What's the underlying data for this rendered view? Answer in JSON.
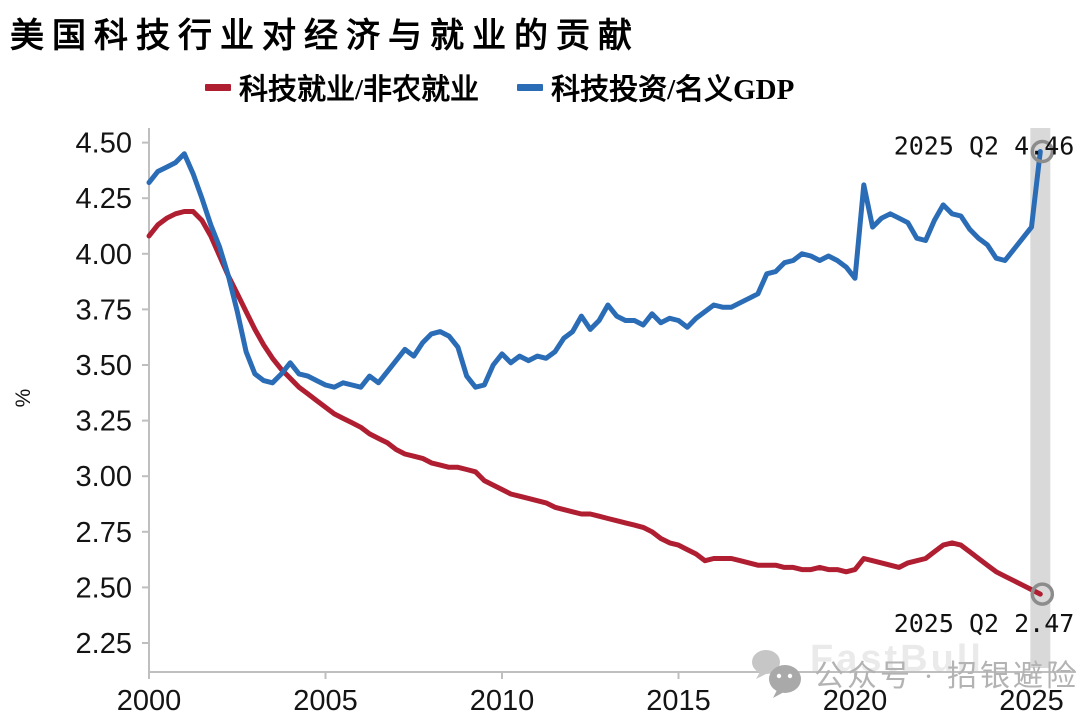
{
  "title": "美国科技行业对经济与就业的贡献",
  "legend": {
    "items": [
      {
        "label": "科技就业/非农就业",
        "color": "#b01e32"
      },
      {
        "label": "科技投资/名义GDP",
        "color": "#2a6cb5"
      }
    ]
  },
  "watermark": {
    "icon": "wechat-icon",
    "text": "公众号 · 招银避险",
    "faint_text": "FastBull"
  },
  "chart_data": {
    "type": "line",
    "title": "美国科技行业对经济与就业的贡献",
    "xlabel": "",
    "ylabel": "%",
    "ylim": [
      2.25,
      4.5
    ],
    "grid": false,
    "yticks": [
      "4.50",
      "4.25",
      "4.00",
      "3.75",
      "3.50",
      "3.25",
      "3.00",
      "2.75",
      "2.50",
      "2.25"
    ],
    "xticks": [
      "2000",
      "2005",
      "2010",
      "2015",
      "2020",
      "2025"
    ],
    "x_start": 2000,
    "x_step": 0.25,
    "x_end_period": "2025 Q2",
    "axis_color": "#bfbfbf",
    "highlight_band": {
      "period": "2025 Q2",
      "color": "#d9d9d9"
    },
    "end_marker_color": "#8c8c8c",
    "series": [
      {
        "name": "科技就业/非农就业",
        "color": "#b01e32",
        "values": [
          4.08,
          4.13,
          4.16,
          4.18,
          4.19,
          4.19,
          4.15,
          4.08,
          3.99,
          3.9,
          3.82,
          3.74,
          3.66,
          3.59,
          3.53,
          3.48,
          3.44,
          3.4,
          3.37,
          3.34,
          3.31,
          3.28,
          3.26,
          3.24,
          3.22,
          3.19,
          3.17,
          3.15,
          3.12,
          3.1,
          3.09,
          3.08,
          3.06,
          3.05,
          3.04,
          3.04,
          3.03,
          3.02,
          2.98,
          2.96,
          2.94,
          2.92,
          2.91,
          2.9,
          2.89,
          2.88,
          2.86,
          2.85,
          2.84,
          2.83,
          2.83,
          2.82,
          2.81,
          2.8,
          2.79,
          2.78,
          2.77,
          2.75,
          2.72,
          2.7,
          2.69,
          2.67,
          2.65,
          2.62,
          2.63,
          2.63,
          2.63,
          2.62,
          2.61,
          2.6,
          2.6,
          2.6,
          2.59,
          2.59,
          2.58,
          2.58,
          2.59,
          2.58,
          2.58,
          2.57,
          2.58,
          2.63,
          2.62,
          2.61,
          2.6,
          2.59,
          2.61,
          2.62,
          2.63,
          2.66,
          2.69,
          2.7,
          2.69,
          2.66,
          2.63,
          2.6,
          2.57,
          2.55,
          2.53,
          2.51,
          2.49,
          2.47
        ]
      },
      {
        "name": "科技投资/名义GDP",
        "color": "#2a6cb5",
        "values": [
          4.32,
          4.37,
          4.39,
          4.41,
          4.45,
          4.36,
          4.25,
          4.13,
          4.03,
          3.9,
          3.74,
          3.56,
          3.46,
          3.43,
          3.42,
          3.46,
          3.51,
          3.46,
          3.45,
          3.43,
          3.41,
          3.4,
          3.42,
          3.41,
          3.4,
          3.45,
          3.42,
          3.47,
          3.52,
          3.57,
          3.54,
          3.6,
          3.64,
          3.65,
          3.63,
          3.58,
          3.45,
          3.4,
          3.41,
          3.5,
          3.55,
          3.51,
          3.54,
          3.52,
          3.54,
          3.53,
          3.56,
          3.62,
          3.65,
          3.72,
          3.66,
          3.7,
          3.77,
          3.72,
          3.7,
          3.7,
          3.68,
          3.73,
          3.69,
          3.71,
          3.7,
          3.67,
          3.71,
          3.74,
          3.77,
          3.76,
          3.76,
          3.78,
          3.8,
          3.82,
          3.91,
          3.92,
          3.96,
          3.97,
          4.0,
          3.99,
          3.97,
          3.99,
          3.97,
          3.94,
          3.89,
          4.31,
          4.12,
          4.16,
          4.18,
          4.16,
          4.14,
          4.07,
          4.06,
          4.15,
          4.22,
          4.18,
          4.17,
          4.11,
          4.07,
          4.04,
          3.98,
          3.97,
          4.02,
          4.07,
          4.12,
          4.46
        ]
      }
    ],
    "annotations": [
      {
        "text": "2025 Q2 4.46",
        "series": 1,
        "placement": "above"
      },
      {
        "text": "2025 Q2 2.47",
        "series": 0,
        "placement": "below"
      }
    ]
  }
}
